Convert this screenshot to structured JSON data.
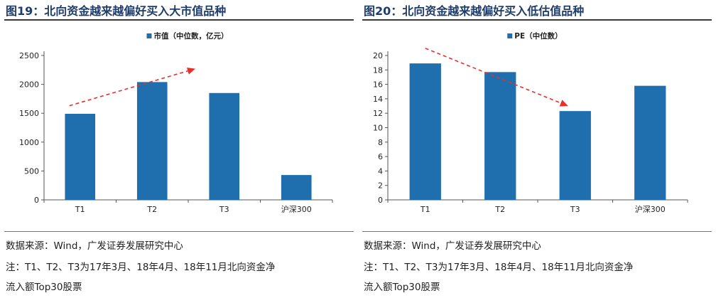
{
  "charts": [
    {
      "figure_title": "图19：北向资金越来越偏好买入大市值品种",
      "source": "数据来源：Wind，广发证券发展研究中心",
      "note_line1": "注：T1、T2、T3为17年3月、18年4月、18年11月北向资金净",
      "note_line2": "流入额Top30股票"
    },
    {
      "figure_title": "图20：北向资金越来越偏好买入低估值品种",
      "source": "数据来源：Wind，广发证券发展研究中心",
      "note_line1": "注：T1、T2、T3为17年3月、18年4月、18年11月北向资金净",
      "note_line2": "流入额Top30股票"
    }
  ],
  "chart_data": [
    {
      "type": "bar",
      "categories": [
        "T1",
        "T2",
        "T3",
        "沪深300"
      ],
      "series": [
        {
          "name": "市值（中位数，亿元）",
          "values": [
            1490,
            2040,
            1850,
            430
          ]
        }
      ],
      "yticks": [
        0,
        500,
        1000,
        1500,
        2000,
        2500
      ],
      "ylim": [
        0,
        2500
      ],
      "grid": false,
      "legend": "top-center",
      "bar_color": "#1f6fae",
      "arrow_color": "#e8302b",
      "trend_arrow": {
        "from": {
          "x": "T1",
          "y": 1630
        },
        "to": {
          "x": "T2-T3",
          "y": 2270
        }
      }
    },
    {
      "type": "bar",
      "categories": [
        "T1",
        "T2",
        "T3",
        "沪深300"
      ],
      "series": [
        {
          "name": "PE（中位数）",
          "values": [
            18.9,
            17.7,
            12.3,
            15.8
          ]
        }
      ],
      "yticks": [
        0,
        2,
        4,
        6,
        8,
        10,
        12,
        14,
        16,
        18,
        20
      ],
      "ylim": [
        0,
        20
      ],
      "grid": false,
      "legend": "top-center",
      "bar_color": "#1f6fae",
      "arrow_color": "#e8302b",
      "trend_arrow": {
        "from": {
          "x": "T1",
          "y": 21
        },
        "to": {
          "x": "T3",
          "y": 13
        }
      }
    }
  ]
}
